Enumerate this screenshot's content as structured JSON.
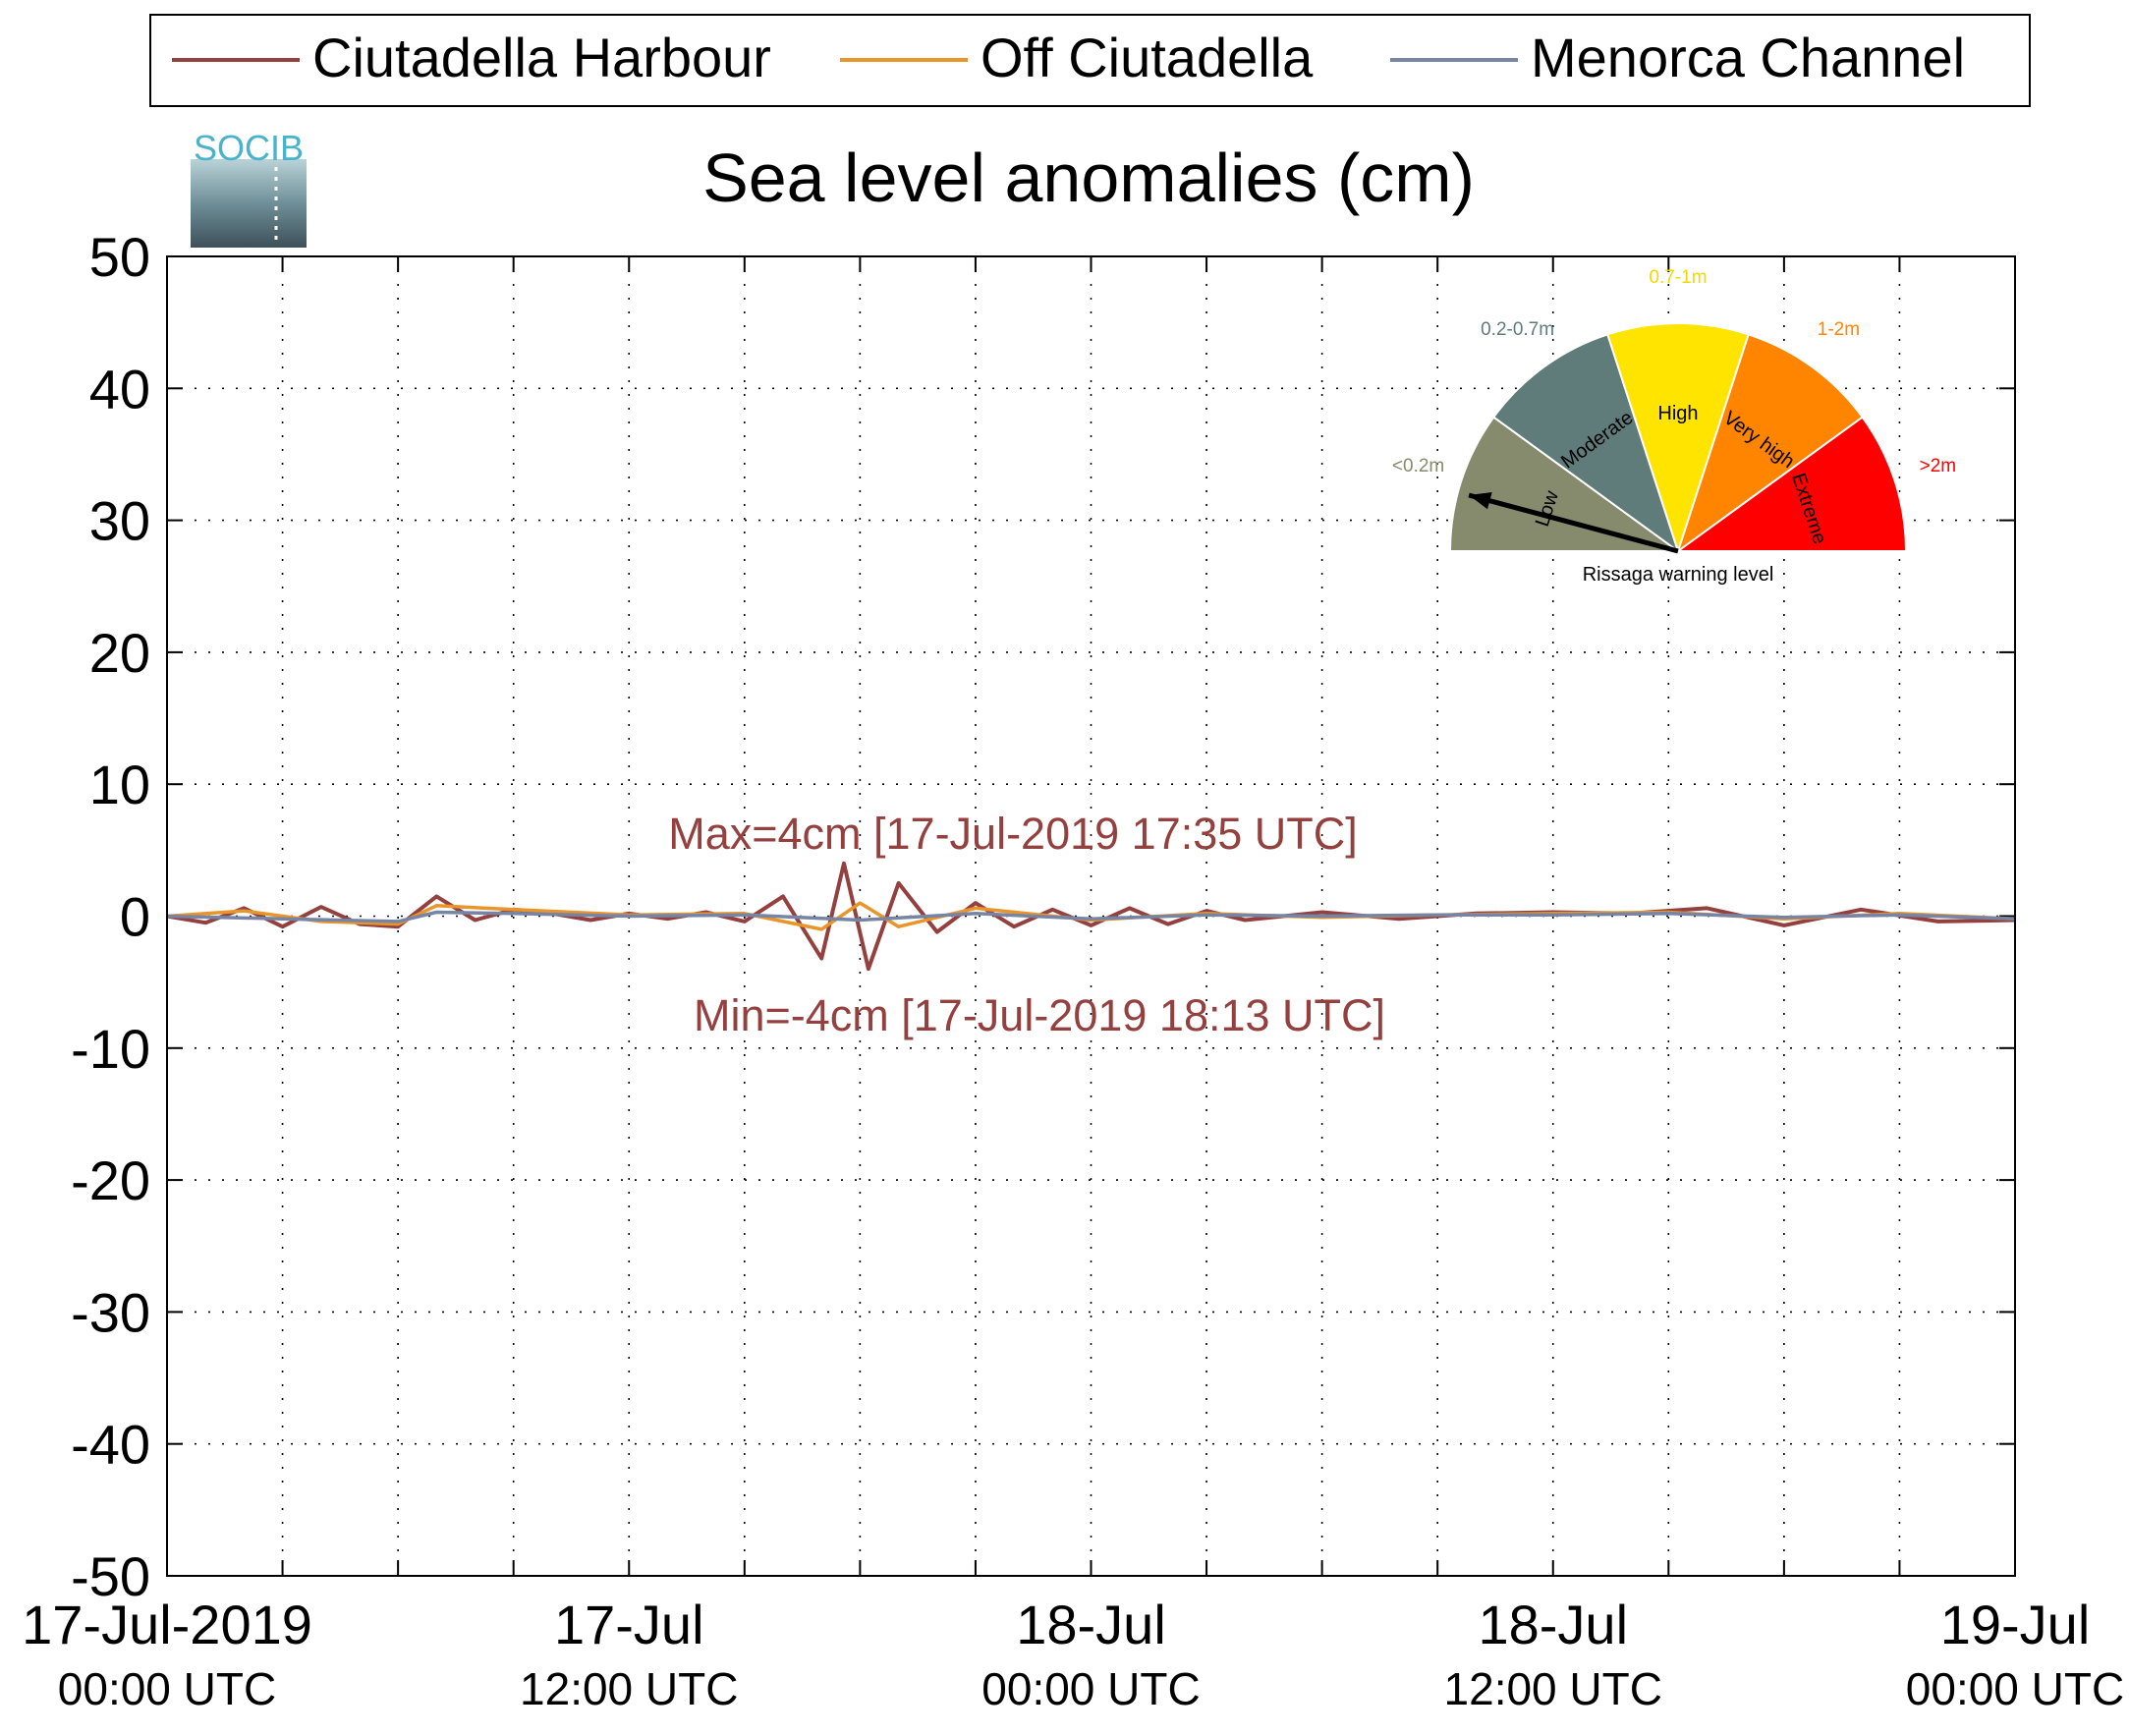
{
  "chart_data": {
    "type": "line",
    "title": "Sea level anomalies (cm)",
    "logo_text": "SOCIB",
    "xlabel": "",
    "ylabel": "",
    "ylim": [
      -50,
      50
    ],
    "yticks": [
      -50,
      -40,
      -30,
      -20,
      -10,
      0,
      10,
      20,
      30,
      40,
      50
    ],
    "xlim": [
      "2019-07-17T00:00",
      "2019-07-19T00:00"
    ],
    "xticks": [
      {
        "t": "2019-07-17T00:00",
        "line1": "17-Jul-2019",
        "line2": "00:00 UTC"
      },
      {
        "t": "2019-07-17T12:00",
        "line1": "17-Jul",
        "line2": "12:00 UTC"
      },
      {
        "t": "2019-07-18T00:00",
        "line1": "18-Jul",
        "line2": "00:00 UTC"
      },
      {
        "t": "2019-07-18T12:00",
        "line1": "18-Jul",
        "line2": "12:00 UTC"
      },
      {
        "t": "2019-07-19T00:00",
        "line1": "19-Jul",
        "line2": "00:00 UTC"
      }
    ],
    "minor_xticks_hours": [
      3,
      6,
      9,
      15,
      18,
      21,
      27,
      30,
      33,
      39,
      42,
      45
    ],
    "grid": true,
    "legend_position": "top",
    "series": [
      {
        "name": "Ciutadella Harbour",
        "color": "#93403f",
        "x": [
          "2019-07-17T00:00",
          "2019-07-17T01:00",
          "2019-07-17T02:00",
          "2019-07-17T03:00",
          "2019-07-17T04:00",
          "2019-07-17T05:00",
          "2019-07-17T06:00",
          "2019-07-17T07:00",
          "2019-07-17T08:00",
          "2019-07-17T09:00",
          "2019-07-17T10:00",
          "2019-07-17T11:00",
          "2019-07-17T12:00",
          "2019-07-17T13:00",
          "2019-07-17T14:00",
          "2019-07-17T15:00",
          "2019-07-17T16:00",
          "2019-07-17T17:00",
          "2019-07-17T17:35",
          "2019-07-17T18:13",
          "2019-07-17T19:00",
          "2019-07-17T20:00",
          "2019-07-17T21:00",
          "2019-07-17T22:00",
          "2019-07-17T23:00",
          "2019-07-18T00:00",
          "2019-07-18T01:00",
          "2019-07-18T02:00",
          "2019-07-18T03:00",
          "2019-07-18T04:00",
          "2019-07-18T06:00",
          "2019-07-18T08:00",
          "2019-07-18T10:00",
          "2019-07-18T12:00",
          "2019-07-18T14:00",
          "2019-07-18T16:00",
          "2019-07-18T18:00",
          "2019-07-18T20:00",
          "2019-07-18T22:00",
          "2019-07-19T00:00"
        ],
        "values": [
          0,
          -0.5,
          0.6,
          -0.8,
          0.7,
          -0.6,
          -0.8,
          1.5,
          -0.3,
          0.5,
          0.2,
          -0.3,
          0.2,
          -0.2,
          0.3,
          -0.4,
          1.5,
          -3.2,
          4,
          -4,
          2.5,
          -1.2,
          1.0,
          -0.8,
          0.5,
          -0.7,
          0.6,
          -0.6,
          0.4,
          -0.3,
          0.3,
          -0.2,
          0.2,
          0.3,
          0.2,
          0.6,
          -0.7,
          0.5,
          -0.4,
          -0.3
        ]
      },
      {
        "name": "Off Ciutadella",
        "color": "#e8952a",
        "x": [
          "2019-07-17T00:00",
          "2019-07-17T02:00",
          "2019-07-17T04:00",
          "2019-07-17T06:00",
          "2019-07-17T07:00",
          "2019-07-17T09:00",
          "2019-07-17T12:00",
          "2019-07-17T15:00",
          "2019-07-17T17:00",
          "2019-07-17T18:00",
          "2019-07-17T19:00",
          "2019-07-17T21:00",
          "2019-07-18T00:00",
          "2019-07-18T03:00",
          "2019-07-18T06:00",
          "2019-07-18T09:00",
          "2019-07-18T12:00",
          "2019-07-18T15:00",
          "2019-07-18T18:00",
          "2019-07-18T21:00",
          "2019-07-19T00:00"
        ],
        "values": [
          0,
          0.4,
          -0.4,
          -0.6,
          0.8,
          0.5,
          0.1,
          0.2,
          -1.0,
          1.0,
          -0.8,
          0.6,
          -0.3,
          0.2,
          -0.1,
          0.1,
          0.2,
          0.3,
          -0.2,
          0.2,
          -0.2
        ]
      },
      {
        "name": "Menorca Channel",
        "color": "#7685a6",
        "x": [
          "2019-07-17T00:00",
          "2019-07-17T03:00",
          "2019-07-17T06:00",
          "2019-07-17T07:00",
          "2019-07-17T09:00",
          "2019-07-17T12:00",
          "2019-07-17T15:00",
          "2019-07-17T18:00",
          "2019-07-17T21:00",
          "2019-07-18T00:00",
          "2019-07-18T03:00",
          "2019-07-18T06:00",
          "2019-07-18T09:00",
          "2019-07-18T12:00",
          "2019-07-18T15:00",
          "2019-07-18T18:00",
          "2019-07-18T21:00",
          "2019-07-19T00:00"
        ],
        "values": [
          0,
          -0.2,
          -0.4,
          0.3,
          0.2,
          0.0,
          0.1,
          -0.3,
          0.2,
          -0.2,
          0.1,
          0.0,
          0.1,
          0.1,
          0.2,
          -0.1,
          0.1,
          -0.2
        ]
      }
    ],
    "annotations": [
      {
        "name": "max",
        "text": "Max=4cm [17-Jul-2019 17:35 UTC]",
        "color": "#93403f"
      },
      {
        "name": "min",
        "text": "Min=-4cm [17-Jul-2019 18:13 UTC]",
        "color": "#93403f"
      }
    ],
    "gauge": {
      "caption": "Rissaga warning level",
      "needle_level": "Low",
      "segments": [
        {
          "name": "Low",
          "range": "<0.2m",
          "color": "#868b6d",
          "range_color": "#868b6d"
        },
        {
          "name": "Moderate",
          "range": "0.2-0.7m",
          "color": "#5f7b7a",
          "range_color": "#5f7b7a"
        },
        {
          "name": "High",
          "range": "0.7-1m",
          "color": "#ffe400",
          "range_color": "#f4d800"
        },
        {
          "name": "Very high",
          "range": "1-2m",
          "color": "#ff8400",
          "range_color": "#ff8400"
        },
        {
          "name": "Extreme",
          "range": ">2m",
          "color": "#ff0000",
          "range_color": "#ff0000"
        }
      ]
    }
  }
}
